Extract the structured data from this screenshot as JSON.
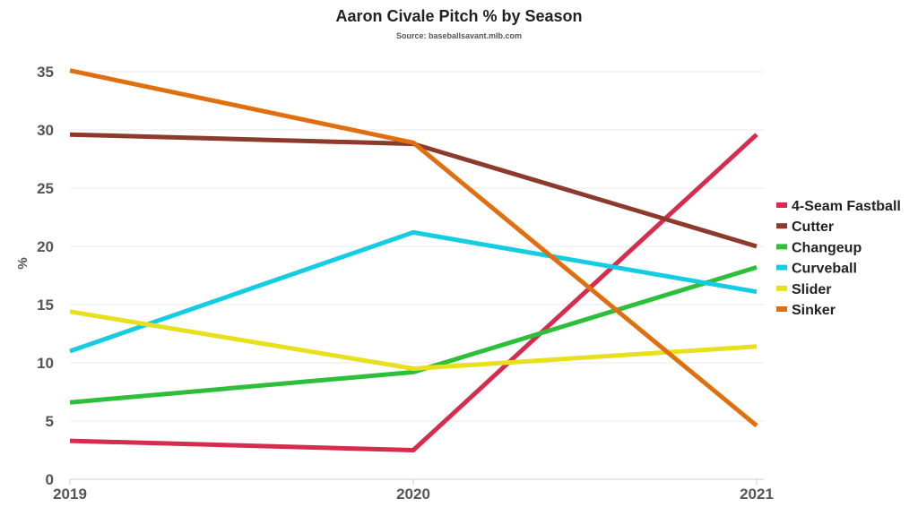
{
  "chart_data": {
    "type": "line",
    "title": "Aaron Civale Pitch % by Season",
    "subtitle": "Source: baseballsavant.mlb.com",
    "xlabel": "",
    "ylabel": "%",
    "x": [
      "2019",
      "2020",
      "2021"
    ],
    "ylim": [
      0,
      35
    ],
    "yticks": [
      "0",
      "5",
      "10",
      "15",
      "20",
      "25",
      "30",
      "35"
    ],
    "grid": true,
    "legend_position": "right",
    "series": [
      {
        "name": "4-Seam Fastball",
        "color": "#d62d4f",
        "values": [
          3.3,
          2.5,
          29.6
        ]
      },
      {
        "name": "Cutter",
        "color": "#8b3a2b",
        "values": [
          29.6,
          28.8,
          20.0
        ]
      },
      {
        "name": "Changeup",
        "color": "#2dbf3a",
        "values": [
          6.6,
          9.2,
          18.2
        ]
      },
      {
        "name": "Curveball",
        "color": "#15cde3",
        "values": [
          11.0,
          21.2,
          16.1
        ]
      },
      {
        "name": "Slider",
        "color": "#e8e01d",
        "values": [
          14.4,
          9.5,
          11.4
        ]
      },
      {
        "name": "Sinker",
        "color": "#e0700f",
        "values": [
          35.1,
          28.9,
          4.6
        ]
      }
    ]
  }
}
